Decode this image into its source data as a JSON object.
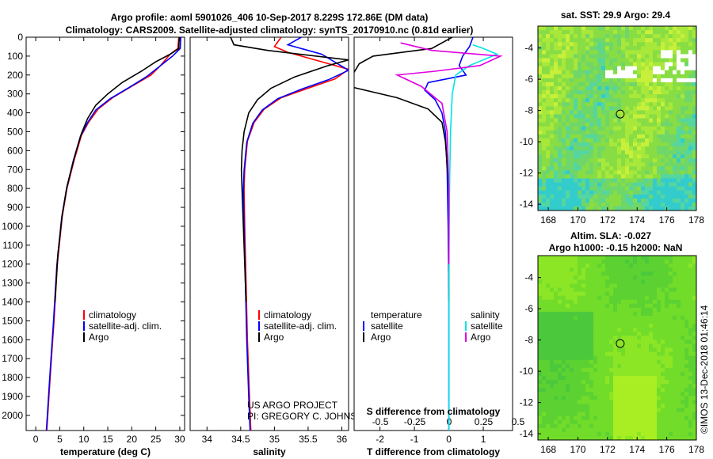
{
  "header": {
    "title_line1": "Argo profile: aoml 5901026_406 10-Sep-2017 8.229S 172.86E (DM data)",
    "title_line2": "Climatology: CARS2009. Satellite-adjusted climatology: synTS_20170910.nc (0.81d earlier)"
  },
  "colors": {
    "climatology": "#ff0000",
    "satellite": "#0000ff",
    "argo": "#000000",
    "salinity_satellite": "#00e5e5",
    "salinity_argo": "#e000e0"
  },
  "chart_data": [
    {
      "type": "line",
      "name": "temperature-profile",
      "xlabel": "temperature (deg C)",
      "ylabel": "",
      "xlim": [
        -2,
        31
      ],
      "ylim": [
        2080,
        0
      ],
      "xticks": [
        0,
        5,
        10,
        15,
        20,
        25,
        30
      ],
      "yticks": [
        0,
        100,
        200,
        300,
        400,
        500,
        600,
        700,
        800,
        900,
        1000,
        1100,
        1200,
        1300,
        1400,
        1500,
        1600,
        1700,
        1800,
        1900,
        2000
      ],
      "legend": [
        "climatology",
        "satellite-adj. clim.",
        "Argo"
      ],
      "series": [
        {
          "name": "climatology",
          "color": "#ff0000",
          "points": [
            [
              29.8,
              0
            ],
            [
              29.6,
              60
            ],
            [
              28,
              90
            ],
            [
              26,
              150
            ],
            [
              24,
              200
            ],
            [
              20,
              260
            ],
            [
              16,
              320
            ],
            [
              13,
              380
            ],
            [
              11,
              450
            ],
            [
              9.5,
              520
            ],
            [
              8,
              650
            ],
            [
              6.5,
              800
            ],
            [
              5.5,
              950
            ],
            [
              4.5,
              1200
            ],
            [
              3.8,
              1500
            ],
            [
              3.0,
              1800
            ],
            [
              2.5,
              2000
            ],
            [
              2.3,
              2080
            ]
          ]
        },
        {
          "name": "satellite-adj. clim.",
          "color": "#0000ff",
          "points": [
            [
              30.2,
              0
            ],
            [
              30.1,
              60
            ],
            [
              28.5,
              100
            ],
            [
              25.5,
              160
            ],
            [
              23,
              210
            ],
            [
              19.5,
              265
            ],
            [
              15.5,
              325
            ],
            [
              12.5,
              385
            ],
            [
              10.7,
              455
            ],
            [
              9.3,
              525
            ],
            [
              7.8,
              655
            ],
            [
              6.4,
              805
            ],
            [
              5.4,
              955
            ],
            [
              4.4,
              1205
            ],
            [
              3.7,
              1505
            ],
            [
              2.9,
              1805
            ],
            [
              2.4,
              2005
            ],
            [
              2.2,
              2080
            ]
          ]
        },
        {
          "name": "Argo",
          "color": "#000000",
          "points": [
            [
              29.9,
              0
            ],
            [
              29.8,
              60
            ],
            [
              28,
              90
            ],
            [
              25,
              130
            ],
            [
              22,
              180
            ],
            [
              18,
              240
            ],
            [
              15,
              300
            ],
            [
              12.5,
              360
            ],
            [
              10.8,
              430
            ],
            [
              9.5,
              510
            ],
            [
              8,
              640
            ],
            [
              6.5,
              790
            ],
            [
              5.5,
              940
            ],
            [
              4.6,
              1150
            ],
            [
              4.0,
              1400
            ]
          ]
        }
      ]
    },
    {
      "type": "line",
      "name": "salinity-profile",
      "xlabel": "salinity",
      "ylabel": "",
      "xlim": [
        33.75,
        36.1
      ],
      "ylim": [
        2080,
        0
      ],
      "xticks": [
        34,
        34.5,
        35,
        35.5,
        36
      ],
      "xtick_labels": [
        "34",
        "34.5",
        "35",
        "35.5",
        "36"
      ],
      "legend": [
        "climatology",
        "satellite-adj. clim.",
        "Argo"
      ],
      "annotations": [
        "US ARGO PROJECT",
        "PI: GREGORY C. JOHNSON"
      ],
      "series": [
        {
          "name": "climatology",
          "color": "#ff0000",
          "points": [
            [
              35.1,
              0
            ],
            [
              35.0,
              50
            ],
            [
              35.2,
              80
            ],
            [
              36.1,
              170
            ],
            [
              35.9,
              220
            ],
            [
              35.5,
              270
            ],
            [
              35.1,
              320
            ],
            [
              34.85,
              380
            ],
            [
              34.7,
              450
            ],
            [
              34.6,
              550
            ],
            [
              34.56,
              700
            ],
            [
              34.55,
              800
            ],
            [
              34.56,
              1000
            ],
            [
              34.58,
              1300
            ],
            [
              34.6,
              1600
            ],
            [
              34.63,
              1900
            ],
            [
              34.65,
              2080
            ]
          ]
        },
        {
          "name": "satellite-adj. clim.",
          "color": "#0000ff",
          "points": [
            [
              35.4,
              0
            ],
            [
              35.2,
              40
            ],
            [
              35.7,
              90
            ],
            [
              36.1,
              175
            ],
            [
              35.8,
              225
            ],
            [
              35.4,
              275
            ],
            [
              35.05,
              325
            ],
            [
              34.82,
              385
            ],
            [
              34.68,
              455
            ],
            [
              34.59,
              555
            ],
            [
              34.55,
              705
            ],
            [
              34.54,
              805
            ],
            [
              34.55,
              1005
            ],
            [
              34.57,
              1305
            ],
            [
              34.59,
              1605
            ],
            [
              34.62,
              1905
            ],
            [
              34.64,
              2080
            ]
          ]
        },
        {
          "name": "Argo",
          "color": "#000000",
          "points": [
            [
              34.35,
              0
            ],
            [
              34.4,
              40
            ],
            [
              34.9,
              70
            ],
            [
              36.1,
              120
            ],
            [
              35.8,
              150
            ],
            [
              35.3,
              210
            ],
            [
              34.95,
              270
            ],
            [
              34.75,
              330
            ],
            [
              34.62,
              400
            ],
            [
              34.55,
              500
            ],
            [
              34.52,
              600
            ],
            [
              34.51,
              700
            ],
            [
              34.52,
              800
            ],
            [
              34.54,
              1000
            ],
            [
              34.56,
              1200
            ],
            [
              34.58,
              1400
            ]
          ]
        }
      ]
    },
    {
      "type": "line",
      "name": "difference-profile",
      "xlabel": "T difference from climatology",
      "xlabel_top": "S difference from climatology",
      "ylabel": "",
      "xlim": [
        -2.75,
        1.85
      ],
      "ylim": [
        2080,
        0
      ],
      "xticks": [
        -2,
        -1,
        0,
        1
      ],
      "xtick_labels": [
        "-2",
        "-1",
        "0",
        "1"
      ],
      "xticks_top": [
        -0.5,
        -0.25,
        0,
        0.25,
        0.5
      ],
      "xtick_labels_top": [
        "-0.5",
        "-0.25",
        "0",
        "0.25",
        "0.5"
      ],
      "legend_left_title": "temperature",
      "legend_left": [
        "satellite",
        "Argo"
      ],
      "legend_right_title": "salinity",
      "legend_right": [
        "satellite",
        "Argo"
      ],
      "series": [
        {
          "name": "temperature satellite",
          "color": "#0000ff",
          "points": [
            [
              0.7,
              0
            ],
            [
              0.6,
              50
            ],
            [
              0.4,
              100
            ],
            [
              0.3,
              150
            ],
            [
              0.5,
              200
            ],
            [
              -0.6,
              240
            ],
            [
              -0.7,
              280
            ],
            [
              -0.4,
              330
            ],
            [
              -0.2,
              400
            ],
            [
              -0.1,
              500
            ],
            [
              -0.05,
              700
            ],
            [
              -0.02,
              1000
            ],
            [
              0,
              1400
            ],
            [
              0,
              2080
            ]
          ]
        },
        {
          "name": "temperature Argo",
          "color": "#000000",
          "points": [
            [
              0.1,
              0
            ],
            [
              -0.5,
              60
            ],
            [
              -2.2,
              100
            ],
            [
              -2.6,
              140
            ],
            [
              -2.8,
              200
            ],
            [
              -2.9,
              260
            ],
            [
              -1.5,
              320
            ],
            [
              -0.6,
              380
            ],
            [
              -0.2,
              450
            ],
            [
              -0.1,
              550
            ],
            [
              0,
              800
            ],
            [
              0,
              1400
            ]
          ]
        },
        {
          "name": "salinity satellite",
          "color": "#00e5e5",
          "points": [
            [
              0.7,
              40
            ],
            [
              1.0,
              60
            ],
            [
              1.4,
              90
            ],
            [
              0.6,
              150
            ],
            [
              0.2,
              200
            ],
            [
              0.1,
              300
            ],
            [
              0.05,
              500
            ],
            [
              0.02,
              800
            ],
            [
              0,
              1200
            ],
            [
              0,
              2080
            ]
          ]
        },
        {
          "name": "salinity Argo",
          "color": "#e000e0",
          "points": [
            [
              -1.4,
              30
            ],
            [
              -0.5,
              70
            ],
            [
              1.5,
              100
            ],
            [
              0.9,
              150
            ],
            [
              -0.4,
              180
            ],
            [
              -1.5,
              200
            ],
            [
              -0.8,
              260
            ],
            [
              -0.2,
              350
            ],
            [
              -0.05,
              500
            ],
            [
              0,
              800
            ],
            [
              0,
              1200
            ]
          ]
        }
      ]
    },
    {
      "type": "heatmap",
      "name": "sst-map",
      "title": "sat. SST: 29.9 Argo: 29.4",
      "xlim": [
        167.3,
        178
      ],
      "ylim": [
        -14.4,
        -2.6
      ],
      "xticks": [
        168,
        170,
        172,
        174,
        176,
        178
      ],
      "yticks": [
        -4,
        -6,
        -8,
        -10,
        -12,
        -14
      ],
      "argo_position": {
        "lon": 172.86,
        "lat": -8.229
      }
    },
    {
      "type": "heatmap",
      "name": "sla-map",
      "title_line1": "Altim. SLA: -0.027",
      "title_line2": "Argo h1000: -0.15 h2000: NaN",
      "xlim": [
        167.3,
        178
      ],
      "ylim": [
        -14.4,
        -2.6
      ],
      "xticks": [
        168,
        170,
        172,
        174,
        176,
        178
      ],
      "yticks": [
        -4,
        -6,
        -8,
        -10,
        -12,
        -14
      ],
      "argo_position": {
        "lon": 172.86,
        "lat": -8.229
      }
    }
  ],
  "footer": {
    "stamp": "©IMOS 13-Dec-2018 01:46:14"
  }
}
